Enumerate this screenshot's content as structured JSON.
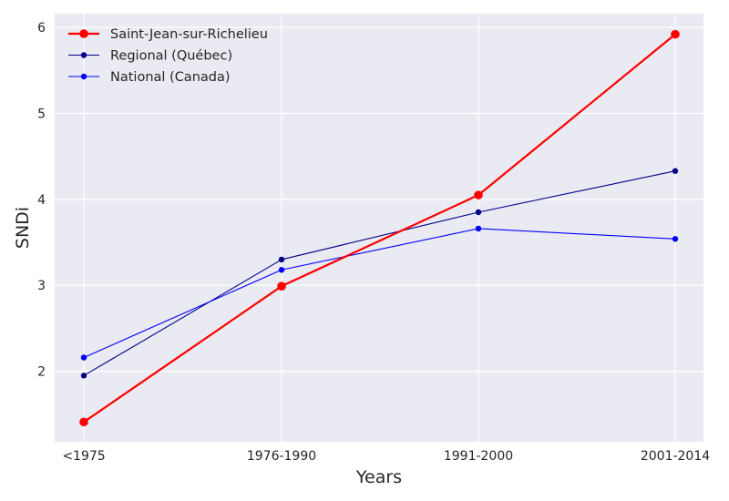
{
  "chart_data": {
    "type": "line",
    "categories": [
      "<1975",
      "1976-1990",
      "1991-2000",
      "2001-2014"
    ],
    "series": [
      {
        "name": "Saint-Jean-sur-Richelieu",
        "values": [
          1.41,
          2.99,
          4.05,
          5.92
        ],
        "color": "#ff0000"
      },
      {
        "name": "Regional (Québec)",
        "values": [
          1.95,
          3.3,
          3.85,
          4.33
        ],
        "color": "#00008b"
      },
      {
        "name": "National (Canada)",
        "values": [
          2.16,
          3.18,
          3.66,
          3.54
        ],
        "color": "#0000ff"
      }
    ],
    "xlabel": "Years",
    "ylabel": "SNDi",
    "yticks": [
      2,
      3,
      4,
      5,
      6
    ],
    "ylim": [
      1.18,
      6.16
    ],
    "grid": true,
    "legend_position": "top-left",
    "background_color": "#eaeaf2",
    "grid_color": "#ffffff"
  }
}
